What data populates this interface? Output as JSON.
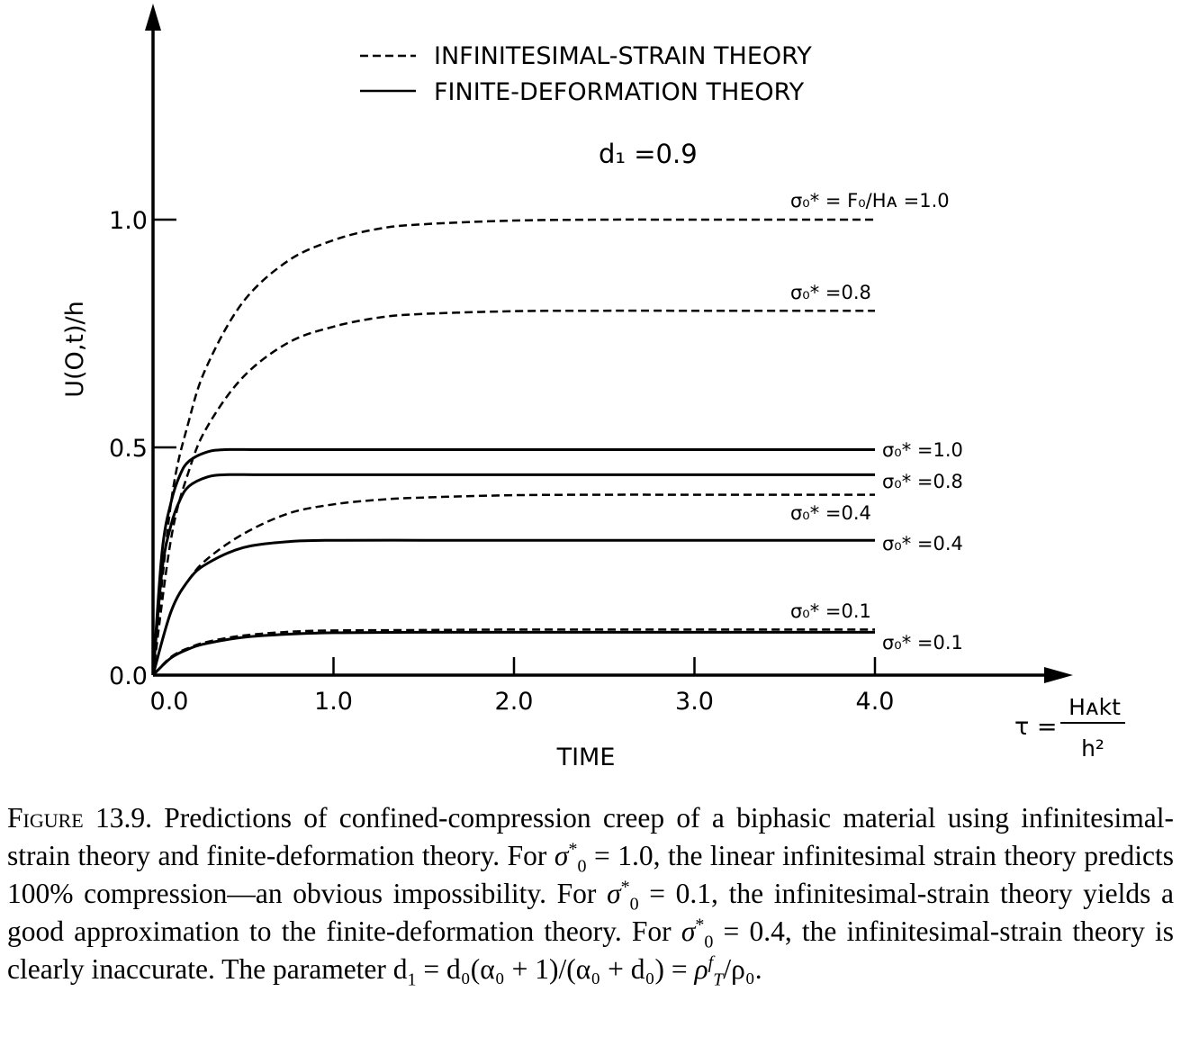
{
  "chart_data": {
    "type": "line",
    "legend": {
      "placement": "top-center",
      "entries": [
        {
          "style": "dashed",
          "label": "INFINITESIMAL-STRAIN THEORY"
        },
        {
          "style": "solid",
          "label": "FINITE-DEFORMATION THEORY"
        }
      ]
    },
    "parameter_label": "d₁ =0.9",
    "ylabel": "U(O,t)/h",
    "xlabel": "TIME",
    "tau_label": {
      "lhs": "τ =",
      "numerator": "Hᴀkt",
      "denominator": "h²"
    },
    "xlim": [
      0,
      4
    ],
    "ylim": [
      0,
      1.45
    ],
    "x_ticks": [
      {
        "value": 0,
        "label": "0.0"
      },
      {
        "value": 1,
        "label": "1.0"
      },
      {
        "value": 2,
        "label": "2.0"
      },
      {
        "value": 3,
        "label": "3.0"
      },
      {
        "value": 4,
        "label": "4.0"
      }
    ],
    "y_ticks": [
      {
        "value": 0,
        "label": "0.0"
      },
      {
        "value": 0.5,
        "label": "0.5"
      },
      {
        "value": 1.0,
        "label": "1.0"
      }
    ],
    "series": [
      {
        "style": "dashed",
        "label": "σ₀* = F₀/Hᴀ =1.0",
        "x": [
          0,
          0.1,
          0.2,
          0.3,
          0.5,
          0.75,
          1.0,
          1.25,
          1.5,
          2.0,
          2.5,
          3.0,
          4.0
        ],
        "y": [
          0,
          0.38,
          0.56,
          0.68,
          0.82,
          0.91,
          0.955,
          0.98,
          0.99,
          0.998,
          1.0,
          1.0,
          1.0
        ]
      },
      {
        "style": "dashed",
        "label": "σ₀* =0.8",
        "x": [
          0,
          0.1,
          0.2,
          0.3,
          0.5,
          0.75,
          1.0,
          1.25,
          1.5,
          2.0,
          2.5,
          3.0,
          4.0
        ],
        "y": [
          0,
          0.3,
          0.45,
          0.545,
          0.655,
          0.73,
          0.765,
          0.785,
          0.793,
          0.799,
          0.8,
          0.8,
          0.8
        ]
      },
      {
        "style": "solid",
        "label": "σ₀* =1.0",
        "x": [
          0,
          0.05,
          0.1,
          0.15,
          0.2,
          0.3,
          0.4,
          0.6,
          1.0,
          2.0,
          3.0,
          4.0
        ],
        "y": [
          0,
          0.27,
          0.38,
          0.44,
          0.47,
          0.49,
          0.495,
          0.495,
          0.495,
          0.495,
          0.495,
          0.495
        ]
      },
      {
        "style": "solid",
        "label": "σ₀* =0.8",
        "x": [
          0,
          0.05,
          0.1,
          0.15,
          0.2,
          0.3,
          0.4,
          0.6,
          1.0,
          2.0,
          3.0,
          4.0
        ],
        "y": [
          0,
          0.23,
          0.33,
          0.385,
          0.415,
          0.435,
          0.44,
          0.44,
          0.44,
          0.44,
          0.44,
          0.44
        ]
      },
      {
        "style": "dashed",
        "label": "σ₀* =0.4",
        "x": [
          0,
          0.1,
          0.2,
          0.3,
          0.5,
          0.75,
          1.0,
          1.25,
          1.5,
          2.0,
          2.5,
          3.0,
          4.0
        ],
        "y": [
          0,
          0.14,
          0.21,
          0.255,
          0.31,
          0.355,
          0.375,
          0.385,
          0.39,
          0.395,
          0.396,
          0.396,
          0.396
        ]
      },
      {
        "style": "solid",
        "label": "σ₀* =0.4",
        "x": [
          0,
          0.1,
          0.2,
          0.3,
          0.5,
          0.75,
          1.0,
          1.5,
          2.0,
          3.0,
          4.0
        ],
        "y": [
          0,
          0.14,
          0.21,
          0.245,
          0.28,
          0.293,
          0.296,
          0.296,
          0.296,
          0.296,
          0.296
        ]
      },
      {
        "style": "dashed",
        "label": "σ₀* =0.1",
        "x": [
          0,
          0.1,
          0.2,
          0.3,
          0.5,
          0.75,
          1.0,
          1.5,
          2.0,
          3.0,
          4.0
        ],
        "y": [
          0,
          0.04,
          0.06,
          0.073,
          0.087,
          0.095,
          0.098,
          0.099,
          0.1,
          0.1,
          0.1
        ]
      },
      {
        "style": "solid",
        "label": "σ₀* =0.1",
        "x": [
          0,
          0.1,
          0.2,
          0.3,
          0.5,
          0.75,
          1.0,
          1.5,
          2.0,
          3.0,
          4.0
        ],
        "y": [
          0,
          0.038,
          0.058,
          0.07,
          0.083,
          0.09,
          0.093,
          0.094,
          0.094,
          0.094,
          0.094
        ]
      }
    ]
  },
  "caption": {
    "fig_word": "Figure",
    "fig_number": "13.9.",
    "s1": "Predictions of confined-compression creep of a biphasic material using infinitesimal-strain theory and finite-deformation theory. For",
    "v1": "= 1.0, the linear infinitesimal strain theory predicts 100% compression—an obvious impossibility. For",
    "v2": "= 0.1, the infinitesimal-strain theory yields a good approximation to the finite-deformation theory. For",
    "v3": "= 0.4, the infinitesimal-strain theory is clearly inaccurate. The parameter d",
    "param_expr": "= d₀(α₀ + 1)/(α₀ + d₀) =",
    "sigma": "σ",
    "rho": "ρ",
    "rho_ratio_tail": "/ρ₀."
  }
}
